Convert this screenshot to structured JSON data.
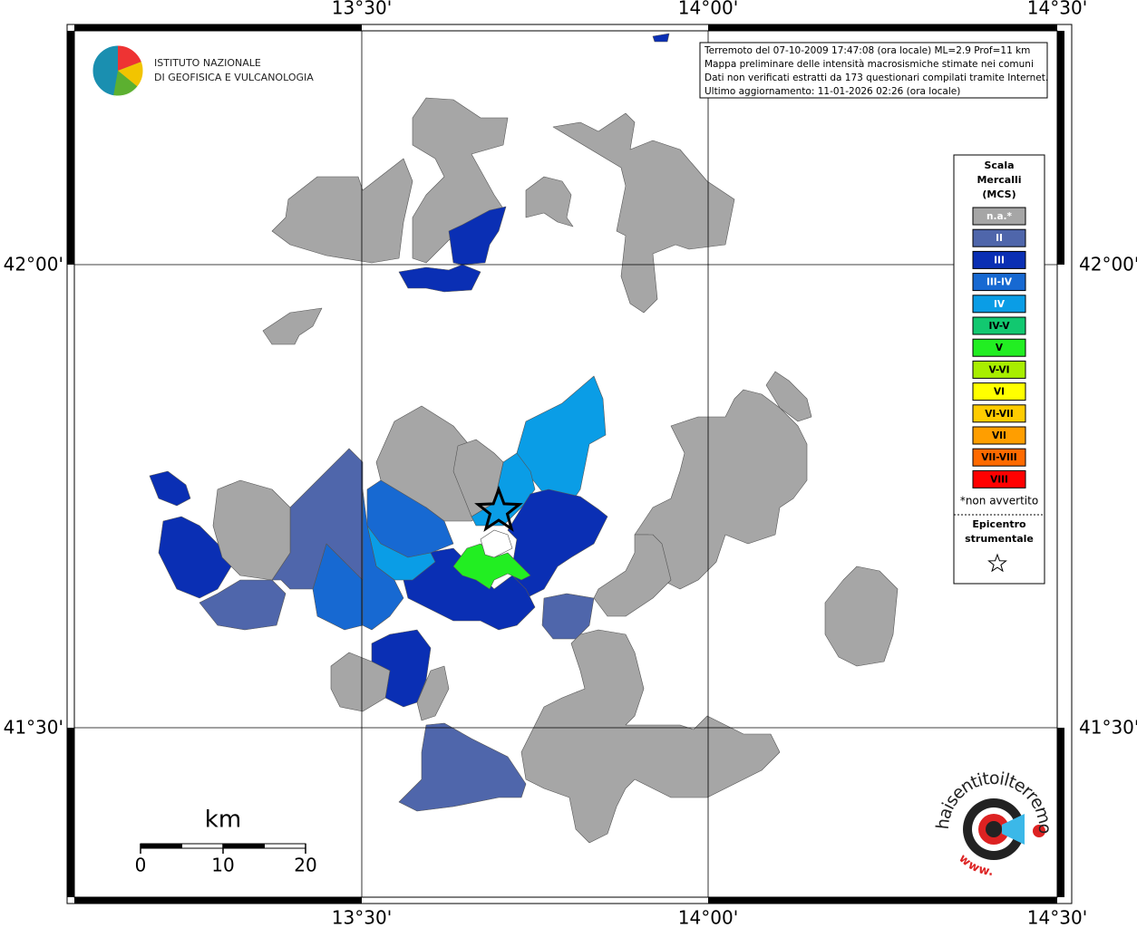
{
  "map": {
    "lon_labels": [
      "13°30'",
      "14°00'",
      "14°30'"
    ],
    "lat_labels": [
      "42°00'",
      "41°30'"
    ]
  },
  "header": {
    "institute": [
      "ISTITUTO NAZIONALE",
      "DI GEOFISICA E VULCANOLOGIA"
    ]
  },
  "info_box": {
    "lines": [
      "Terremoto del 07-10-2009 17:47:08 (ora locale) ML=2.9 Prof=11 km",
      "Mappa preliminare delle intensità macrosismiche stimate nei comuni",
      "Dati non verificati estratti da 173 questionari compilati tramite Internet.",
      "Ultimo aggiornamento: 11-01-2026 02:26 (ora locale)"
    ]
  },
  "legend": {
    "title": [
      "Scala",
      "Mercalli",
      "(MCS)"
    ],
    "classes": [
      {
        "label": "n.a.*",
        "color": "#a6a6a6"
      },
      {
        "label": "II",
        "color": "#4f66ab"
      },
      {
        "label": "III",
        "color": "#0a2fb4"
      },
      {
        "label": "III-IV",
        "color": "#1769d2"
      },
      {
        "label": "IV",
        "color": "#0a9de6"
      },
      {
        "label": "IV-V",
        "color": "#12c870"
      },
      {
        "label": "V",
        "color": "#22ee22"
      },
      {
        "label": "V-VI",
        "color": "#a8ee00"
      },
      {
        "label": "VI",
        "color": "#ffff00"
      },
      {
        "label": "VI-VII",
        "color": "#ffcc00"
      },
      {
        "label": "VII",
        "color": "#ff9e00"
      },
      {
        "label": "VII-VIII",
        "color": "#ff6a00"
      },
      {
        "label": "VIII",
        "color": "#ff0000"
      }
    ],
    "note": "*non avvertito",
    "epicenter_title": [
      "Epicentro",
      "strumentale"
    ]
  },
  "scale_bar": {
    "unit": "km",
    "ticks": [
      0,
      10,
      20
    ]
  },
  "logo": {
    "text": "haisentitoilterremoto.it",
    "prefix": "www."
  }
}
